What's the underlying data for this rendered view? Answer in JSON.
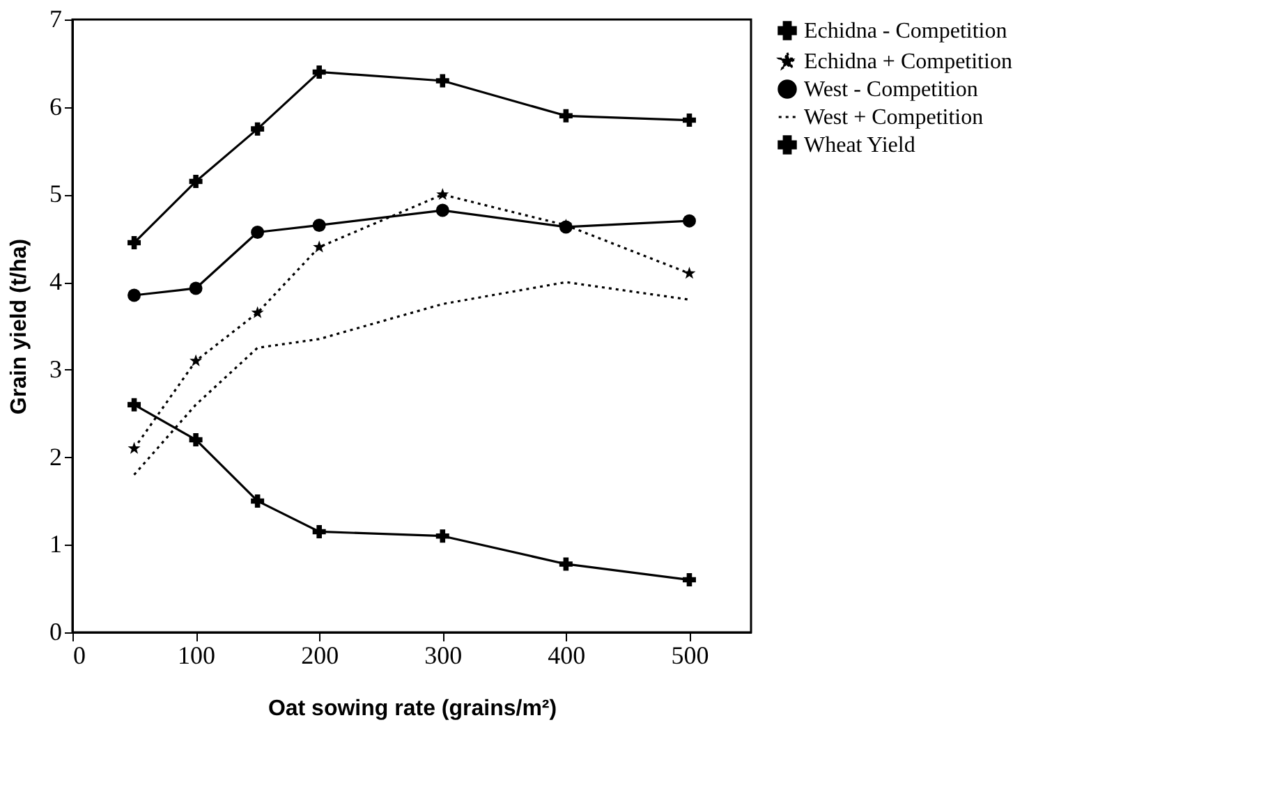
{
  "chart_data": {
    "type": "line",
    "xlabel": "Oat sowing rate (grains/m²)",
    "ylabel": "Grain yield (t/ha)",
    "x": [
      50,
      100,
      150,
      200,
      300,
      400,
      500
    ],
    "series": [
      {
        "name": "Echidna - Competition",
        "color": "#000000",
        "marker": "cross",
        "line_style": "solid",
        "values": [
          4.45,
          5.15,
          5.75,
          6.4,
          6.3,
          5.9,
          5.85
        ]
      },
      {
        "name": "Echidna + Competition",
        "color": "#000000",
        "marker": "star",
        "line_style": "dotted",
        "values": [
          2.1,
          3.1,
          3.65,
          4.4,
          5.0,
          4.65,
          4.1
        ]
      },
      {
        "name": "West - Competition",
        "color": "#000000",
        "marker": "circle",
        "line_style": "solid",
        "values": [
          3.85,
          3.93,
          4.57,
          4.65,
          4.82,
          4.63,
          4.7
        ]
      },
      {
        "name": "West + Competition",
        "color": "#000000",
        "marker": "none",
        "line_style": "dotted",
        "values": [
          1.8,
          2.6,
          3.25,
          3.35,
          3.75,
          4.0,
          3.8
        ]
      },
      {
        "name": "Wheat Yield",
        "color": "#000000",
        "marker": "cross",
        "line_style": "solid",
        "values": [
          2.6,
          2.2,
          1.5,
          1.15,
          1.1,
          0.78,
          0.6
        ]
      }
    ],
    "xlim": [
      0,
      550
    ],
    "xticks": [
      0,
      100,
      200,
      300,
      400,
      500
    ],
    "ylim": [
      0,
      7
    ],
    "yticks": [
      0,
      1,
      2,
      3,
      4,
      5,
      6,
      7
    ],
    "grid": false,
    "legend": "right"
  }
}
